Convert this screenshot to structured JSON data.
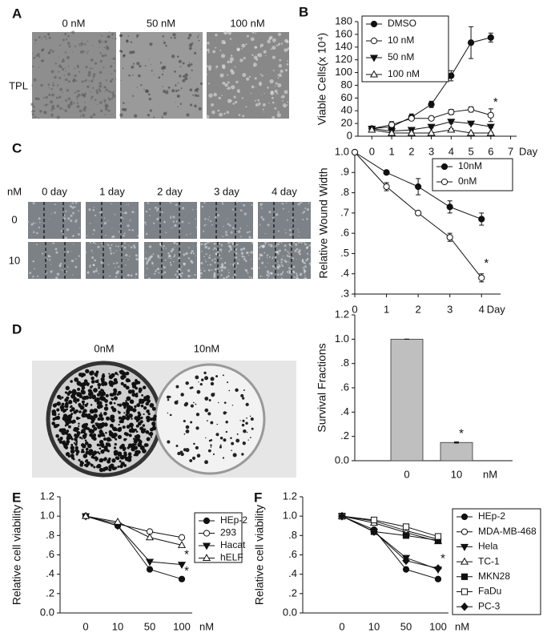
{
  "panel_labels": [
    "A",
    "B",
    "C",
    "D",
    "E",
    "F"
  ],
  "panel_a": {
    "row_label": "TPL",
    "columns": [
      "0 nM",
      "50 nM",
      "100 nM"
    ]
  },
  "panel_c": {
    "corner": "nM",
    "columns": [
      "0 day",
      "1 day",
      "2 day",
      "3 day",
      "4 day"
    ],
    "rows": [
      "0",
      "10"
    ]
  },
  "panel_d": {
    "columns": [
      "0nM",
      "10nM"
    ]
  },
  "chart_data": [
    {
      "type": "line",
      "ylabel": "Viable Cells(x 10⁴)",
      "xlabel": "Day",
      "x": [
        0,
        1,
        2,
        3,
        4,
        5,
        6
      ],
      "xlim": [
        -0.7,
        7.3
      ],
      "xticks": [
        0,
        1,
        2,
        3,
        4,
        5,
        6,
        7
      ],
      "ylim": [
        0,
        180
      ],
      "yticks": [
        0,
        20,
        40,
        60,
        80,
        100,
        120,
        140,
        160,
        180
      ],
      "legend": "upper left",
      "series": [
        {
          "name": "DMSO",
          "color": "#111111",
          "marker": "circle-filled",
          "values": [
            12,
            15,
            30,
            50,
            95,
            147,
            155
          ],
          "errors": [
            2,
            3,
            5,
            5,
            8,
            25,
            7
          ]
        },
        {
          "name": "10 nM",
          "color": "#111111",
          "marker": "circle-open",
          "values": [
            12,
            18,
            28,
            28,
            38,
            42,
            33
          ],
          "errors": [
            3,
            5,
            3,
            3,
            4,
            4,
            10
          ]
        },
        {
          "name": "50 nM",
          "color": "#111111",
          "marker": "triangle-down-filled",
          "values": [
            12,
            8,
            10,
            15,
            23,
            20,
            15
          ],
          "errors": [
            2,
            2,
            2,
            2,
            3,
            2,
            2
          ]
        },
        {
          "name": "100 nM",
          "color": "#111111",
          "marker": "triangle-up-open",
          "values": [
            10,
            5,
            5,
            5,
            10,
            5,
            5
          ],
          "errors": [
            2,
            1,
            1,
            1,
            2,
            1,
            1
          ]
        }
      ],
      "annotations": [
        {
          "text": "*",
          "x": 6,
          "y": 53
        }
      ]
    },
    {
      "type": "line",
      "ylabel": "Relative Wound Width",
      "xlabel": "Day",
      "x": [
        0,
        1,
        2,
        3,
        4
      ],
      "xlim": [
        0,
        4.6
      ],
      "xticks": [
        0,
        1,
        2,
        3,
        4
      ],
      "ylim": [
        0.3,
        1.0
      ],
      "yticks": [
        {
          "value": 0.3,
          "label": ".3"
        },
        {
          "value": 0.4,
          "label": ".4"
        },
        {
          "value": 0.5,
          "label": ".5"
        },
        {
          "value": 0.6,
          "label": ".6"
        },
        {
          "value": 0.7,
          "label": ".7"
        },
        {
          "value": 0.8,
          "label": ".8"
        },
        {
          "value": 0.9,
          "label": ".9"
        },
        {
          "value": 1.0,
          "label": "1.0"
        }
      ],
      "legend": "upper right",
      "series": [
        {
          "name": "10nM",
          "color": "#111111",
          "marker": "circle-filled",
          "values": [
            1.0,
            0.9,
            0.83,
            0.73,
            0.67
          ],
          "errors": [
            0,
            0.01,
            0.04,
            0.03,
            0.03
          ]
        },
        {
          "name": "0nM",
          "color": "#111111",
          "marker": "circle-open",
          "values": [
            1.0,
            0.83,
            0.7,
            0.58,
            0.38
          ],
          "errors": [
            0,
            0.02,
            0.01,
            0.02,
            0.02
          ]
        }
      ],
      "annotations": [
        {
          "text": "*",
          "x": 4,
          "y": 0.45
        }
      ]
    },
    {
      "type": "bar",
      "ylabel": "Survival Fractions",
      "xlabel": "nM",
      "categories": [
        "0",
        "10"
      ],
      "values": [
        1.0,
        0.15
      ],
      "errors": [
        0,
        0.005
      ],
      "color": "#bfbfbf",
      "ylim": [
        0,
        1.2
      ],
      "yticks": [
        {
          "value": 0,
          "label": "0.0"
        },
        {
          "value": 0.2,
          "label": ".2"
        },
        {
          "value": 0.4,
          "label": ".4"
        },
        {
          "value": 0.6,
          "label": ".6"
        },
        {
          "value": 0.8,
          "label": ".8"
        },
        {
          "value": 1.0,
          "label": "1.0"
        },
        {
          "value": 1.2,
          "label": "1.2"
        }
      ],
      "annotations": [
        {
          "text": "*",
          "x": "10",
          "y": 0.22
        }
      ]
    },
    {
      "type": "line",
      "ylabel": "Relative cell viability",
      "xlabel": "nM",
      "categories": [
        "0",
        "10",
        "50",
        "100"
      ],
      "ylim": [
        0,
        1.2
      ],
      "yticks": [
        {
          "value": 0,
          "label": "0.0"
        },
        {
          "value": 0.2,
          "label": ".2"
        },
        {
          "value": 0.4,
          "label": ".4"
        },
        {
          "value": 0.6,
          "label": ".6"
        },
        {
          "value": 0.8,
          "label": ".8"
        },
        {
          "value": 1.0,
          "label": "1.0"
        },
        {
          "value": 1.2,
          "label": "1.2"
        }
      ],
      "legend": "outside right",
      "series": [
        {
          "name": "HEp-2",
          "color": "#111111",
          "marker": "circle-filled",
          "values": [
            1.0,
            0.9,
            0.45,
            0.35
          ]
        },
        {
          "name": "293",
          "color": "#111111",
          "marker": "circle-open",
          "values": [
            1.0,
            0.92,
            0.84,
            0.78
          ]
        },
        {
          "name": "Hacat",
          "color": "#111111",
          "marker": "triangle-down-filled",
          "values": [
            1.0,
            0.9,
            0.53,
            0.5
          ]
        },
        {
          "name": "hELF",
          "color": "#111111",
          "marker": "triangle-up-open",
          "values": [
            1.0,
            0.94,
            0.78,
            0.7
          ]
        }
      ],
      "annotations": [
        {
          "text": "*",
          "x": "100",
          "y": 0.6
        },
        {
          "text": "*",
          "x": "100",
          "y": 0.43
        }
      ]
    },
    {
      "type": "line",
      "ylabel": "Relative cell viability",
      "xlabel": "nM",
      "categories": [
        "0",
        "10",
        "50",
        "100"
      ],
      "ylim": [
        0,
        1.2
      ],
      "yticks": [
        {
          "value": 0,
          "label": "0.0"
        },
        {
          "value": 0.2,
          "label": ".2"
        },
        {
          "value": 0.4,
          "label": ".4"
        },
        {
          "value": 0.6,
          "label": ".6"
        },
        {
          "value": 0.8,
          "label": ".8"
        },
        {
          "value": 1.0,
          "label": "1.0"
        },
        {
          "value": 1.2,
          "label": "1.2"
        }
      ],
      "legend": "outside right",
      "series": [
        {
          "name": "HEp-2",
          "color": "#111111",
          "marker": "circle-filled",
          "values": [
            1.0,
            0.86,
            0.45,
            0.35
          ]
        },
        {
          "name": "MDA-MB-468",
          "color": "#111111",
          "marker": "circle-open",
          "values": [
            1.0,
            0.95,
            0.85,
            0.76
          ]
        },
        {
          "name": "Hela",
          "color": "#111111",
          "marker": "triangle-down-filled",
          "values": [
            1.0,
            0.84,
            0.57,
            0.45
          ]
        },
        {
          "name": "TC-1",
          "color": "#111111",
          "marker": "triangle-up-open",
          "values": [
            1.0,
            0.93,
            0.83,
            0.74
          ]
        },
        {
          "name": "MKN28",
          "color": "#111111",
          "marker": "square-filled",
          "values": [
            1.0,
            0.84,
            0.8,
            0.75
          ]
        },
        {
          "name": "FaDu",
          "color": "#111111",
          "marker": "square-open",
          "values": [
            1.0,
            0.96,
            0.89,
            0.79
          ]
        },
        {
          "name": "PC-3",
          "color": "#111111",
          "marker": "diamond-filled",
          "values": [
            1.0,
            0.84,
            0.54,
            0.46
          ]
        }
      ],
      "annotations": [
        {
          "text": "*",
          "x": "100",
          "y": 0.56
        }
      ]
    }
  ]
}
